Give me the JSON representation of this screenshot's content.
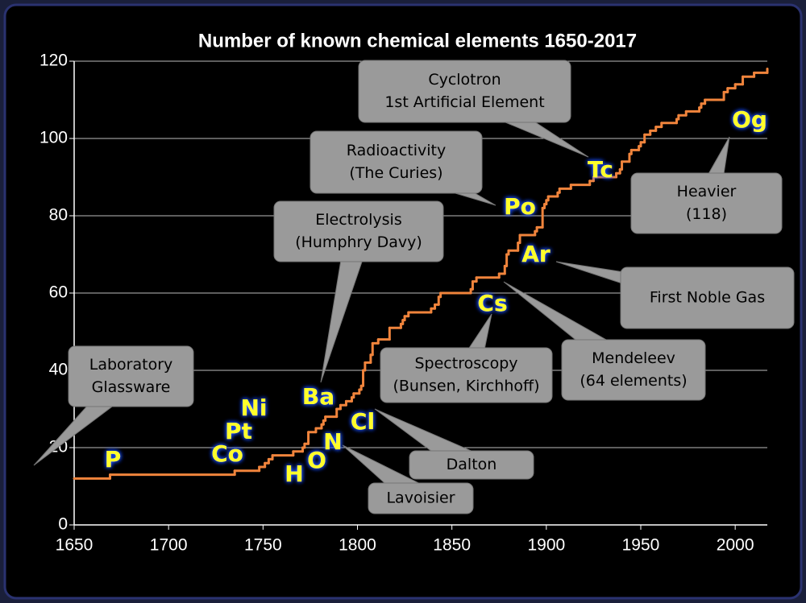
{
  "chart_data": {
    "type": "line",
    "title": "Number of known chemical elements 1650-2017",
    "step": "post",
    "color": "#f0843c",
    "grid": true,
    "xlim": [
      1650,
      2017
    ],
    "xticks": [
      1650,
      1700,
      1750,
      1800,
      1850,
      1900,
      1950,
      2000
    ],
    "ylim": [
      0,
      120
    ],
    "yticks": [
      0,
      20,
      40,
      60,
      80,
      100,
      120
    ],
    "x": [
      1650,
      1669,
      1735,
      1748,
      1751,
      1753,
      1755,
      1766,
      1771,
      1772,
      1774,
      1778,
      1781,
      1782,
      1783,
      1789,
      1791,
      1794,
      1797,
      1798,
      1801,
      1802,
      1803,
      1804,
      1807,
      1808,
      1811,
      1817,
      1823,
      1824,
      1825,
      1827,
      1839,
      1841,
      1843,
      1844,
      1860,
      1861,
      1863,
      1875,
      1878,
      1879,
      1880,
      1885,
      1886,
      1894,
      1895,
      1898,
      1899,
      1900,
      1901,
      1906,
      1907,
      1913,
      1923,
      1925,
      1937,
      1939,
      1940,
      1944,
      1945,
      1949,
      1950,
      1952,
      1955,
      1958,
      1961,
      1969,
      1970,
      1974,
      1981,
      1982,
      1984,
      1994,
      1996,
      2000,
      2004,
      2010,
      2017
    ],
    "values": [
      12,
      13,
      14,
      15,
      16,
      17,
      18,
      19,
      20,
      21,
      24,
      25,
      26,
      27,
      28,
      30,
      31,
      32,
      33,
      34,
      35,
      36,
      40,
      42,
      44,
      47,
      48,
      51,
      52,
      53,
      54,
      55,
      56,
      57,
      59,
      60,
      61,
      63,
      64,
      65,
      67,
      70,
      71,
      73,
      75,
      76,
      77,
      82,
      83,
      84,
      85,
      86,
      87,
      88,
      89,
      90,
      91,
      92,
      94,
      96,
      97,
      98,
      99,
      101,
      102,
      103,
      104,
      105,
      106,
      107,
      108,
      109,
      110,
      112,
      113,
      114,
      116,
      117,
      118
    ],
    "element_labels": [
      "P",
      "Co",
      "Pt",
      "Ni",
      "H",
      "O",
      "N",
      "Ba",
      "Cl",
      "Cs",
      "Ar",
      "Po",
      "Tc",
      "Og"
    ],
    "callouts": [
      {
        "lines": [
          "Laboratory",
          "Glassware"
        ]
      },
      {
        "lines": [
          "Electrolysis",
          "(Humphry Davy)"
        ]
      },
      {
        "lines": [
          "Radioactivity",
          "(The Curies)"
        ]
      },
      {
        "lines": [
          "Cyclotron",
          "1st Artificial Element"
        ]
      },
      {
        "lines": [
          "Heavier",
          "(118)"
        ]
      },
      {
        "lines": [
          "First Noble Gas"
        ]
      },
      {
        "lines": [
          "Mendeleev",
          "(64 elements)"
        ]
      },
      {
        "lines": [
          "Spectroscopy",
          "(Bunsen, Kirchhoff)"
        ]
      },
      {
        "lines": [
          "Dalton"
        ]
      },
      {
        "lines": [
          "Lavoisier"
        ]
      }
    ]
  }
}
